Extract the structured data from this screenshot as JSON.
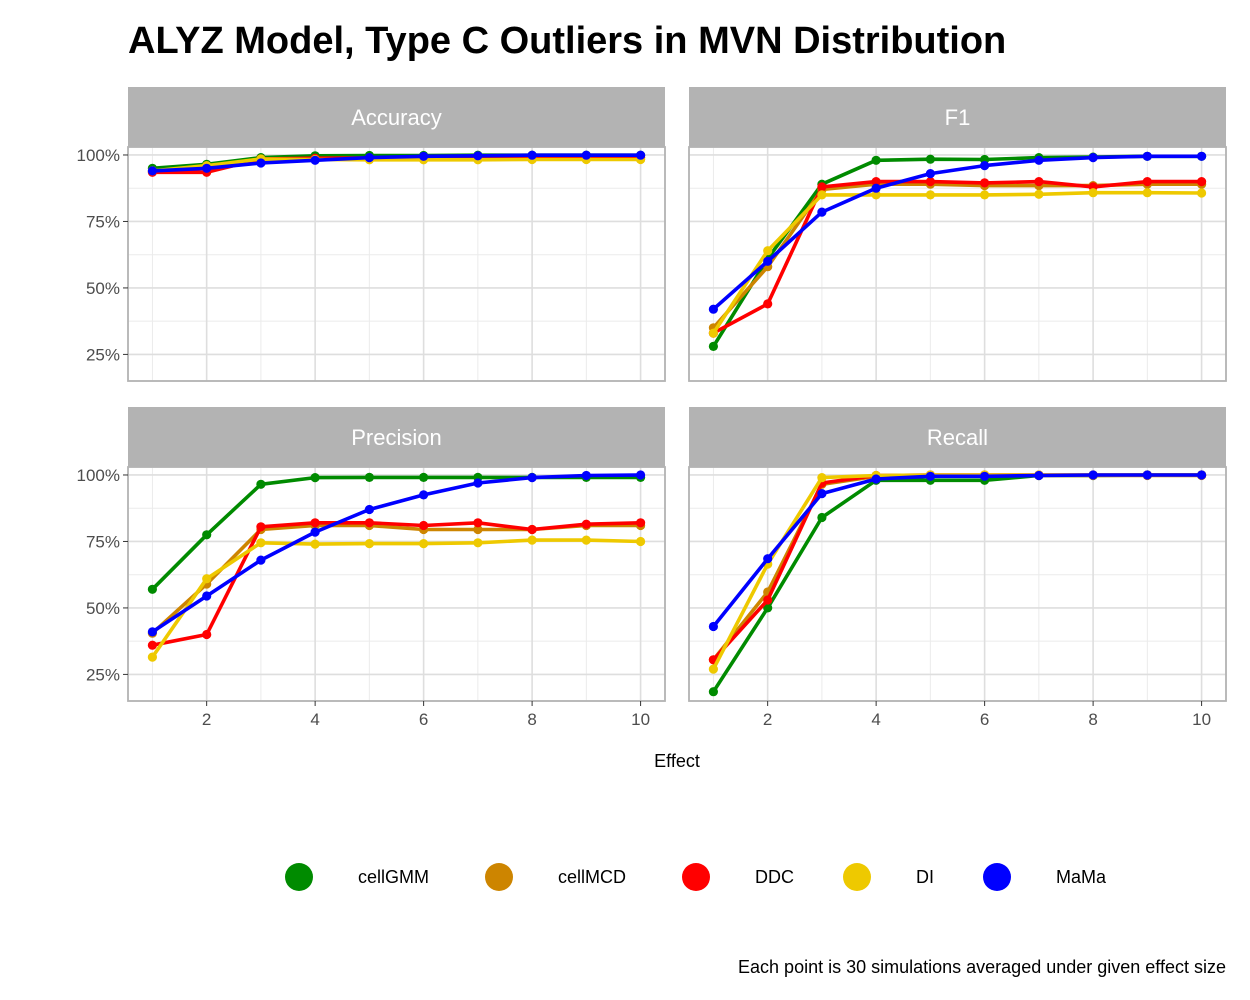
{
  "chart_data": {
    "type": "line",
    "title": "ALYZ Model, Type C Outliers in MVN Distribution",
    "xlabel": "Effect",
    "ylabel": "",
    "caption": "Each point is 30 simulations averaged under given effect size",
    "x": [
      1,
      2,
      3,
      4,
      5,
      6,
      7,
      8,
      9,
      10
    ],
    "xlim": [
      0.55,
      10.45
    ],
    "ylim": [
      0.15,
      1.03
    ],
    "x_ticks": [
      2,
      4,
      6,
      8,
      10
    ],
    "x_tick_labels": [
      "2",
      "4",
      "6",
      "8",
      "10"
    ],
    "y_ticks": [
      0.25,
      0.5,
      0.75,
      1.0
    ],
    "y_tick_labels": [
      "25%",
      "50%",
      "75%",
      "100%"
    ],
    "grid": true,
    "legend_position": "bottom",
    "colors": {
      "cellGMM": "#008B00",
      "cellMCD": "#CD8500",
      "DDC": "#FF0000",
      "DI": "#EEC900",
      "MaMa": "#0000FF"
    },
    "legend": [
      "cellGMM",
      "cellMCD",
      "DDC",
      "DI",
      "MaMa"
    ],
    "panels": [
      {
        "name": "Accuracy",
        "series": [
          {
            "name": "cellGMM",
            "values": [
              0.95,
              0.965,
              0.99,
              0.997,
              0.998,
              0.998,
              0.999,
              0.999,
              0.999,
              0.999
            ]
          },
          {
            "name": "cellMCD",
            "values": [
              0.94,
              0.955,
              0.985,
              0.985,
              0.985,
              0.985,
              0.985,
              0.985,
              0.985,
              0.985
            ]
          },
          {
            "name": "DDC",
            "values": [
              0.935,
              0.935,
              0.985,
              0.988,
              0.989,
              0.989,
              0.99,
              0.99,
              0.991,
              0.991
            ]
          },
          {
            "name": "DI",
            "values": [
              0.94,
              0.96,
              0.985,
              0.983,
              0.982,
              0.982,
              0.982,
              0.983,
              0.983,
              0.983
            ]
          },
          {
            "name": "MaMa",
            "values": [
              0.94,
              0.95,
              0.97,
              0.98,
              0.99,
              0.995,
              0.997,
              0.999,
              0.999,
              0.999
            ]
          }
        ]
      },
      {
        "name": "F1",
        "series": [
          {
            "name": "cellGMM",
            "values": [
              0.28,
              0.61,
              0.89,
              0.98,
              0.984,
              0.983,
              0.99,
              0.992,
              0.995,
              0.995
            ]
          },
          {
            "name": "cellMCD",
            "values": [
              0.35,
              0.58,
              0.87,
              0.89,
              0.89,
              0.885,
              0.885,
              0.885,
              0.89,
              0.89
            ]
          },
          {
            "name": "DDC",
            "values": [
              0.33,
              0.44,
              0.88,
              0.9,
              0.9,
              0.895,
              0.9,
              0.88,
              0.9,
              0.9
            ]
          },
          {
            "name": "DI",
            "values": [
              0.33,
              0.64,
              0.85,
              0.85,
              0.85,
              0.85,
              0.852,
              0.858,
              0.858,
              0.857
            ]
          },
          {
            "name": "MaMa",
            "values": [
              0.42,
              0.6,
              0.785,
              0.875,
              0.93,
              0.96,
              0.98,
              0.99,
              0.995,
              0.995
            ]
          }
        ]
      },
      {
        "name": "Precision",
        "series": [
          {
            "name": "cellGMM",
            "values": [
              0.57,
              0.775,
              0.965,
              0.99,
              0.991,
              0.991,
              0.991,
              0.991,
              0.991,
              0.991
            ]
          },
          {
            "name": "cellMCD",
            "values": [
              0.405,
              0.59,
              0.795,
              0.81,
              0.81,
              0.795,
              0.795,
              0.795,
              0.81,
              0.81
            ]
          },
          {
            "name": "DDC",
            "values": [
              0.36,
              0.4,
              0.805,
              0.82,
              0.82,
              0.81,
              0.82,
              0.795,
              0.815,
              0.82
            ]
          },
          {
            "name": "DI",
            "values": [
              0.315,
              0.61,
              0.745,
              0.74,
              0.742,
              0.742,
              0.745,
              0.755,
              0.755,
              0.75
            ]
          },
          {
            "name": "MaMa",
            "values": [
              0.41,
              0.545,
              0.68,
              0.785,
              0.87,
              0.925,
              0.97,
              0.99,
              0.998,
              1.0
            ]
          }
        ]
      },
      {
        "name": "Recall",
        "series": [
          {
            "name": "cellGMM",
            "values": [
              0.185,
              0.5,
              0.84,
              0.98,
              0.98,
              0.98,
              0.998,
              0.998,
              1.0,
              1.0
            ]
          },
          {
            "name": "cellMCD",
            "values": [
              0.305,
              0.56,
              0.965,
              0.995,
              0.998,
              0.998,
              0.998,
              0.998,
              0.998,
              0.998
            ]
          },
          {
            "name": "DDC",
            "values": [
              0.305,
              0.53,
              0.97,
              0.998,
              1.0,
              1.0,
              1.0,
              1.0,
              1.0,
              1.0
            ]
          },
          {
            "name": "DI",
            "values": [
              0.27,
              0.665,
              0.99,
              0.998,
              1.0,
              1.0,
              1.0,
              1.0,
              1.0,
              1.0
            ]
          },
          {
            "name": "MaMa",
            "values": [
              0.43,
              0.685,
              0.93,
              0.985,
              0.995,
              0.995,
              0.998,
              1.0,
              1.0,
              1.0
            ]
          }
        ]
      }
    ]
  }
}
